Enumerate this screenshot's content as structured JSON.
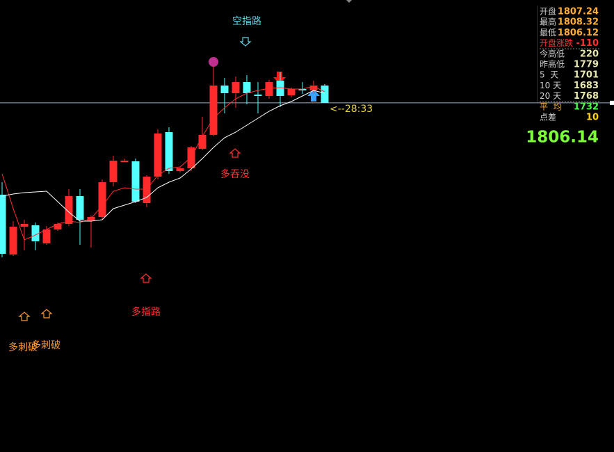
{
  "chart_data": {
    "type": "candlestick",
    "ylim": [
      1304,
      1954
    ],
    "up_color": "#ff2b2b",
    "down_color": "#54ffff",
    "open": [
      1674,
      1588,
      1628,
      1630,
      1604,
      1624,
      1632,
      1672,
      1636,
      1642,
      1692,
      1722,
      1722,
      1662,
      1700,
      1764,
      1708,
      1712,
      1740,
      1760,
      1831,
      1820,
      1836,
      1818,
      1816,
      1838,
      1817,
      1826,
      1824,
      1831
    ],
    "high": [
      1692,
      1636,
      1638,
      1634,
      1629,
      1634,
      1682,
      1682,
      1644,
      1696,
      1730,
      1726,
      1726,
      1702,
      1768,
      1771,
      1714,
      1744,
      1786,
      1859,
      1842,
      1844,
      1846,
      1836,
      1839,
      1850,
      1828,
      1836,
      1838,
      1833
    ],
    "low": [
      1584,
      1586,
      1594,
      1594,
      1602,
      1622,
      1629,
      1602,
      1598,
      1639,
      1686,
      1721,
      1662,
      1656,
      1696,
      1704,
      1706,
      1708,
      1738,
      1758,
      1791,
      1799,
      1804,
      1791,
      1812,
      1800,
      1814,
      1819,
      1820,
      1806
    ],
    "close": [
      1589,
      1628,
      1632,
      1607,
      1624,
      1632,
      1672,
      1638,
      1642,
      1692,
      1723,
      1723,
      1664,
      1700,
      1762,
      1708,
      1712,
      1742,
      1760,
      1831,
      1820,
      1836,
      1820,
      1816,
      1836,
      1816,
      1826,
      1824,
      1831,
      1806
    ],
    "series": [
      {
        "color": "#ff3030",
        "values": [
          1704,
          1654,
          1609,
          1616,
          1624,
          1632,
          1636,
          1634,
          1640,
          1658,
          1679,
          1684,
          1682,
          1682,
          1702,
          1712,
          1714,
          1728,
          1758,
          1784,
          1799,
          1812,
          1820,
          1824,
          1827,
          1828,
          1826,
          1826,
          1830,
          1822
        ]
      },
      {
        "color": "#ffffff",
        "values": [
          1672,
          1675,
          1677,
          1678,
          1679,
          1664,
          1649,
          1636,
          1636,
          1638,
          1654,
          1659,
          1664,
          1670,
          1684,
          1692,
          1698,
          1711,
          1726,
          1742,
          1756,
          1764,
          1774,
          1784,
          1794,
          1802,
          1808,
          1816,
          1824,
          1820
        ]
      }
    ],
    "last": 1806.14,
    "last_color": "#7cff3a",
    "countdown": "<--28:33",
    "annotations": [
      {
        "text": "空指路",
        "color": "#5fd8e8"
      },
      {
        "text": "多吞没",
        "color": "#ff3030"
      },
      {
        "text": "多指路",
        "color": "#ff3030"
      },
      {
        "text": "多刺破",
        "color": "#ff9a30"
      },
      {
        "text": "多刺破",
        "color": "#ff9a30"
      }
    ]
  },
  "quote_panel": {
    "rows": [
      {
        "label": "开盘",
        "value": "1807.24",
        "label_color": "#d0d0d0",
        "value_color": "#ffae30"
      },
      {
        "label": "最高",
        "value": "1808.32",
        "label_color": "#d0d0d0",
        "value_color": "#ffae30"
      },
      {
        "label": "最低",
        "value": "1806.12",
        "label_color": "#d0d0d0",
        "value_color": "#ffae30"
      },
      {
        "label": "开盘涨跌",
        "value": "-110",
        "label_color": "#ff3030",
        "value_color": "#ff3030"
      },
      {
        "label": "今高低",
        "value": "220",
        "label_color": "#d0d0d0",
        "value_color": "#e8e8b0"
      },
      {
        "label": "昨高低",
        "value": "1779",
        "label_color": "#d0d0d0",
        "value_color": "#e8e8b0"
      },
      {
        "label": "5  天",
        "value": "1701",
        "label_color": "#d0d0d0",
        "value_color": "#e8e8b0"
      },
      {
        "label": "10 天",
        "value": "1683",
        "label_color": "#d0d0d0",
        "value_color": "#e8e8b0"
      },
      {
        "label": "20 天",
        "value": "1768",
        "label_color": "#d0d0d0",
        "value_color": "#e8e8b0"
      },
      {
        "label": "平  均",
        "value": "1732",
        "label_color": "#ffae30",
        "value_color": "#4cff4c"
      },
      {
        "label": "点差",
        "value": "10",
        "label_color": "#d0d0d0",
        "value_color": "#ffd700"
      }
    ]
  }
}
